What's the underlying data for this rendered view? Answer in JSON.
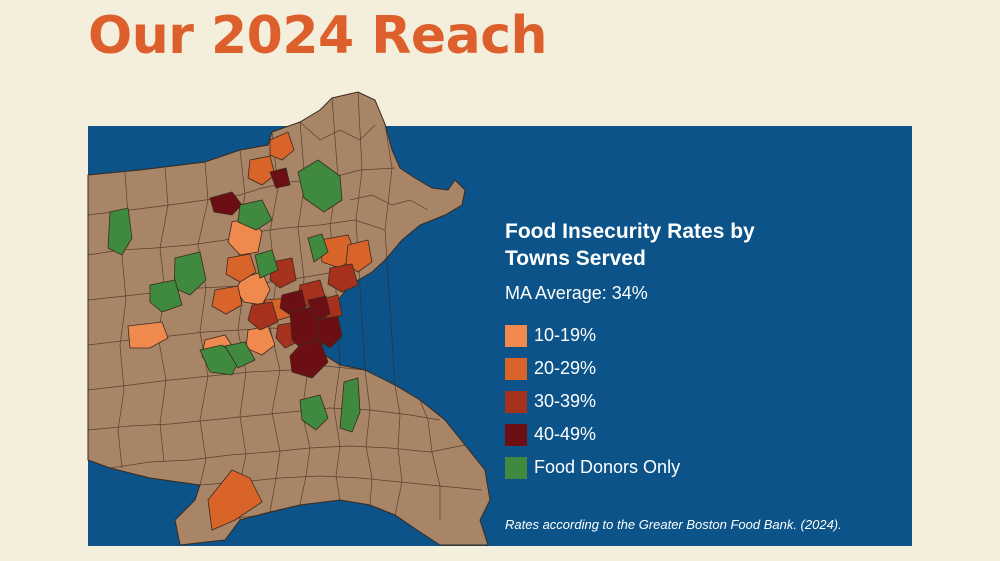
{
  "page": {
    "title": "Our 2024 Reach"
  },
  "colors": {
    "background": "#f4eedc",
    "title": "#dd5f2b",
    "ocean": "#0b5388",
    "land": "#a88566",
    "town_border": "#3b2a1e"
  },
  "legend": {
    "title": "Food Insecurity Rates by Towns Served",
    "subtitle": "MA Average: 34%",
    "items": [
      {
        "label": "10-19%",
        "color": "#f0894e"
      },
      {
        "label": "20-29%",
        "color": "#d8642a"
      },
      {
        "label": "30-39%",
        "color": "#a6321d"
      },
      {
        "label": "40-49%",
        "color": "#6b0f14"
      },
      {
        "label": "Food Donors Only",
        "color": "#3f8a3e"
      }
    ]
  },
  "source_note": "Rates according to the Greater Boston Food Bank. (2024)."
}
